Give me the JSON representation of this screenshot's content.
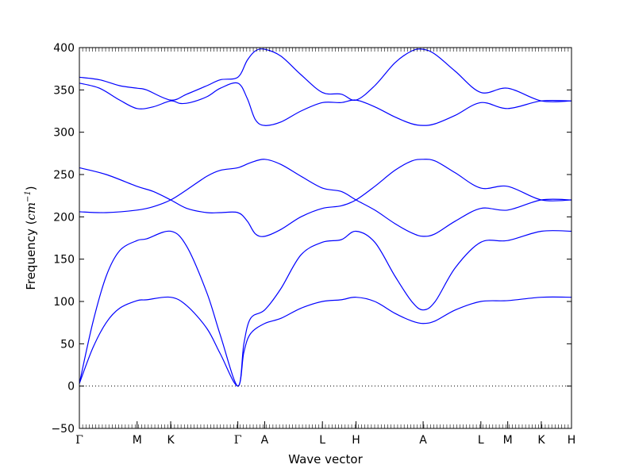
{
  "chart_data": {
    "type": "line",
    "title": "",
    "xlabel": "Wave vector",
    "ylabel_text": "Frequency (",
    "ylabel_math": "cm",
    "ylabel_exp": "−1",
    "ylabel_close": ")",
    "ylim": [
      -50,
      400
    ],
    "yticks": [
      -50,
      0,
      50,
      100,
      150,
      200,
      250,
      300,
      350,
      400
    ],
    "xlim": [
      0,
      7.33
    ],
    "zero_line": 0,
    "grid": false,
    "legend": "none",
    "line_color": "#0000ff",
    "kpoints": [
      {
        "label": "Γ",
        "x": 0
      },
      {
        "label": "M",
        "x": 0.86
      },
      {
        "label": "K",
        "x": 1.36
      },
      {
        "label": "Γ",
        "x": 2.36
      },
      {
        "label": "A",
        "x": 2.76
      },
      {
        "label": "L",
        "x": 3.62
      },
      {
        "label": "H",
        "x": 4.12
      },
      {
        "label": "A",
        "x": 5.12
      },
      {
        "label": "L",
        "x": 5.98
      },
      {
        "label": "M",
        "x": 6.38
      },
      {
        "label": "K",
        "x": 6.88
      },
      {
        "label": "H",
        "x": 7.33
      }
    ],
    "series": [
      {
        "values": [
          [
            0,
            3
          ],
          [
            0.2,
            45
          ],
          [
            0.4,
            75
          ],
          [
            0.6,
            92
          ],
          [
            0.86,
            101
          ],
          [
            1.0,
            102
          ],
          [
            1.36,
            105
          ],
          [
            1.6,
            95
          ],
          [
            1.9,
            68
          ],
          [
            2.1,
            38
          ],
          [
            2.36,
            0
          ],
          [
            2.45,
            40
          ],
          [
            2.55,
            62
          ],
          [
            2.76,
            74
          ],
          [
            3.0,
            80
          ],
          [
            3.3,
            92
          ],
          [
            3.62,
            100
          ],
          [
            3.9,
            102
          ],
          [
            4.12,
            105
          ],
          [
            4.4,
            100
          ],
          [
            4.7,
            86
          ],
          [
            4.95,
            77
          ],
          [
            5.12,
            74
          ],
          [
            5.3,
            77
          ],
          [
            5.6,
            90
          ],
          [
            5.98,
            100
          ],
          [
            6.38,
            101
          ],
          [
            6.88,
            105
          ],
          [
            7.33,
            105
          ]
        ]
      },
      {
        "values": [
          [
            0,
            3
          ],
          [
            0.2,
            75
          ],
          [
            0.4,
            130
          ],
          [
            0.6,
            160
          ],
          [
            0.86,
            172
          ],
          [
            1.0,
            174
          ],
          [
            1.36,
            183
          ],
          [
            1.6,
            165
          ],
          [
            1.9,
            110
          ],
          [
            2.1,
            60
          ],
          [
            2.36,
            0
          ],
          [
            2.45,
            50
          ],
          [
            2.55,
            80
          ],
          [
            2.76,
            90
          ],
          [
            3.0,
            115
          ],
          [
            3.3,
            155
          ],
          [
            3.62,
            170
          ],
          [
            3.9,
            173
          ],
          [
            4.12,
            183
          ],
          [
            4.4,
            170
          ],
          [
            4.7,
            130
          ],
          [
            4.95,
            100
          ],
          [
            5.12,
            90
          ],
          [
            5.3,
            100
          ],
          [
            5.6,
            140
          ],
          [
            5.98,
            170
          ],
          [
            6.38,
            172
          ],
          [
            6.88,
            183
          ],
          [
            7.33,
            183
          ]
        ]
      },
      {
        "values": [
          [
            0,
            206
          ],
          [
            0.4,
            205
          ],
          [
            0.86,
            208
          ],
          [
            1.1,
            212
          ],
          [
            1.36,
            220
          ],
          [
            1.6,
            232
          ],
          [
            1.9,
            248
          ],
          [
            2.1,
            255
          ],
          [
            2.36,
            258
          ],
          [
            2.55,
            264
          ],
          [
            2.76,
            268
          ],
          [
            3.0,
            262
          ],
          [
            3.3,
            248
          ],
          [
            3.62,
            234
          ],
          [
            3.9,
            230
          ],
          [
            4.12,
            220
          ],
          [
            4.4,
            208
          ],
          [
            4.7,
            192
          ],
          [
            4.95,
            181
          ],
          [
            5.12,
            177
          ],
          [
            5.3,
            180
          ],
          [
            5.6,
            195
          ],
          [
            5.98,
            210
          ],
          [
            6.38,
            208
          ],
          [
            6.88,
            220
          ],
          [
            7.33,
            220
          ]
        ]
      },
      {
        "values": [
          [
            0,
            258
          ],
          [
            0.4,
            250
          ],
          [
            0.86,
            236
          ],
          [
            1.1,
            230
          ],
          [
            1.36,
            220
          ],
          [
            1.6,
            210
          ],
          [
            1.9,
            205
          ],
          [
            2.1,
            205
          ],
          [
            2.36,
            205
          ],
          [
            2.5,
            195
          ],
          [
            2.62,
            180
          ],
          [
            2.76,
            177
          ],
          [
            3.0,
            185
          ],
          [
            3.3,
            200
          ],
          [
            3.62,
            210
          ],
          [
            3.9,
            213
          ],
          [
            4.12,
            220
          ],
          [
            4.4,
            236
          ],
          [
            4.7,
            255
          ],
          [
            4.95,
            266
          ],
          [
            5.12,
            268
          ],
          [
            5.3,
            266
          ],
          [
            5.6,
            252
          ],
          [
            5.98,
            234
          ],
          [
            6.38,
            236
          ],
          [
            6.88,
            220
          ],
          [
            7.33,
            220
          ]
        ]
      },
      {
        "values": [
          [
            0,
            358
          ],
          [
            0.3,
            352
          ],
          [
            0.6,
            338
          ],
          [
            0.86,
            328
          ],
          [
            1.1,
            330
          ],
          [
            1.36,
            337
          ],
          [
            1.5,
            334
          ],
          [
            1.65,
            335
          ],
          [
            1.9,
            342
          ],
          [
            2.1,
            352
          ],
          [
            2.36,
            358
          ],
          [
            2.5,
            340
          ],
          [
            2.62,
            315
          ],
          [
            2.76,
            308
          ],
          [
            3.0,
            312
          ],
          [
            3.3,
            325
          ],
          [
            3.62,
            335
          ],
          [
            3.9,
            335
          ],
          [
            4.12,
            338
          ],
          [
            4.4,
            330
          ],
          [
            4.7,
            318
          ],
          [
            4.95,
            310
          ],
          [
            5.12,
            308
          ],
          [
            5.3,
            310
          ],
          [
            5.6,
            320
          ],
          [
            5.98,
            335
          ],
          [
            6.38,
            328
          ],
          [
            6.88,
            337
          ],
          [
            7.33,
            337
          ]
        ]
      },
      {
        "values": [
          [
            0,
            365
          ],
          [
            0.3,
            362
          ],
          [
            0.6,
            355
          ],
          [
            0.86,
            352
          ],
          [
            1.0,
            350
          ],
          [
            1.36,
            338
          ],
          [
            1.6,
            345
          ],
          [
            1.9,
            355
          ],
          [
            2.1,
            362
          ],
          [
            2.36,
            365
          ],
          [
            2.5,
            385
          ],
          [
            2.62,
            396
          ],
          [
            2.76,
            398
          ],
          [
            3.0,
            390
          ],
          [
            3.3,
            368
          ],
          [
            3.62,
            347
          ],
          [
            3.9,
            345
          ],
          [
            4.12,
            338
          ],
          [
            4.4,
            355
          ],
          [
            4.7,
            382
          ],
          [
            4.95,
            396
          ],
          [
            5.12,
            398
          ],
          [
            5.3,
            392
          ],
          [
            5.6,
            372
          ],
          [
            5.98,
            347
          ],
          [
            6.38,
            352
          ],
          [
            6.88,
            337
          ],
          [
            7.33,
            337
          ]
        ]
      }
    ]
  }
}
